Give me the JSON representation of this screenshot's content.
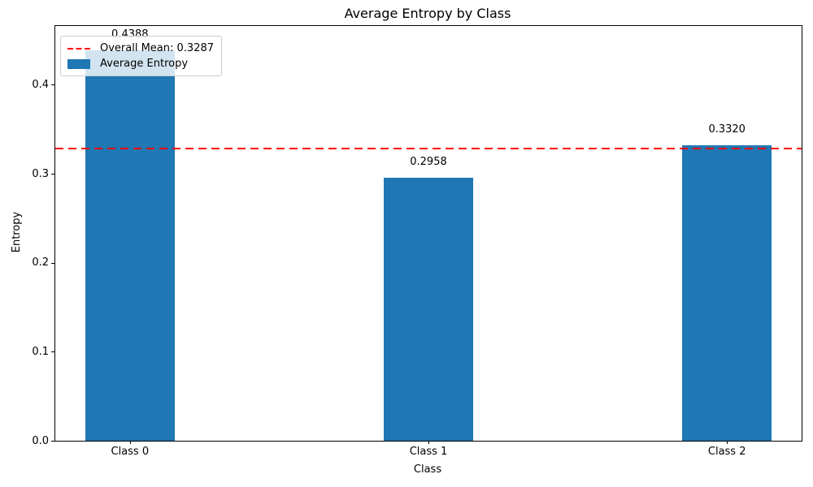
{
  "chart_data": {
    "type": "bar",
    "title": "Average Entropy by Class",
    "xlabel": "Class",
    "ylabel": "Entropy",
    "categories": [
      "Class 0",
      "Class 1",
      "Class 2"
    ],
    "series": [
      {
        "name": "Average Entropy",
        "values": [
          0.4388,
          0.2958,
          0.332
        ],
        "color": "#1f77b4"
      }
    ],
    "bar_value_labels": [
      "0.4388",
      "0.2958",
      "0.3320"
    ],
    "x_positions": [
      0,
      1,
      2
    ],
    "bar_width": 0.3,
    "xlim": [
      -0.25,
      2.25
    ],
    "ylim": [
      0,
      0.466
    ],
    "ytick_values": [
      0,
      0.1,
      0.2,
      0.3,
      0.4
    ],
    "ytick_labels": [
      "0.0",
      "0.1",
      "0.2",
      "0.3",
      "0.4"
    ],
    "grid": false,
    "reference_line": {
      "value": 0.3287,
      "color": "#ff0000",
      "style": "dashed",
      "label": "Overall Mean: 0.3287"
    },
    "legend": {
      "position": "upper-left",
      "entries": [
        {
          "type": "dashed-line",
          "color": "#ff0000",
          "label": "Overall Mean: 0.3287"
        },
        {
          "type": "patch",
          "color": "#1f77b4",
          "label": "Average Entropy"
        }
      ]
    }
  }
}
